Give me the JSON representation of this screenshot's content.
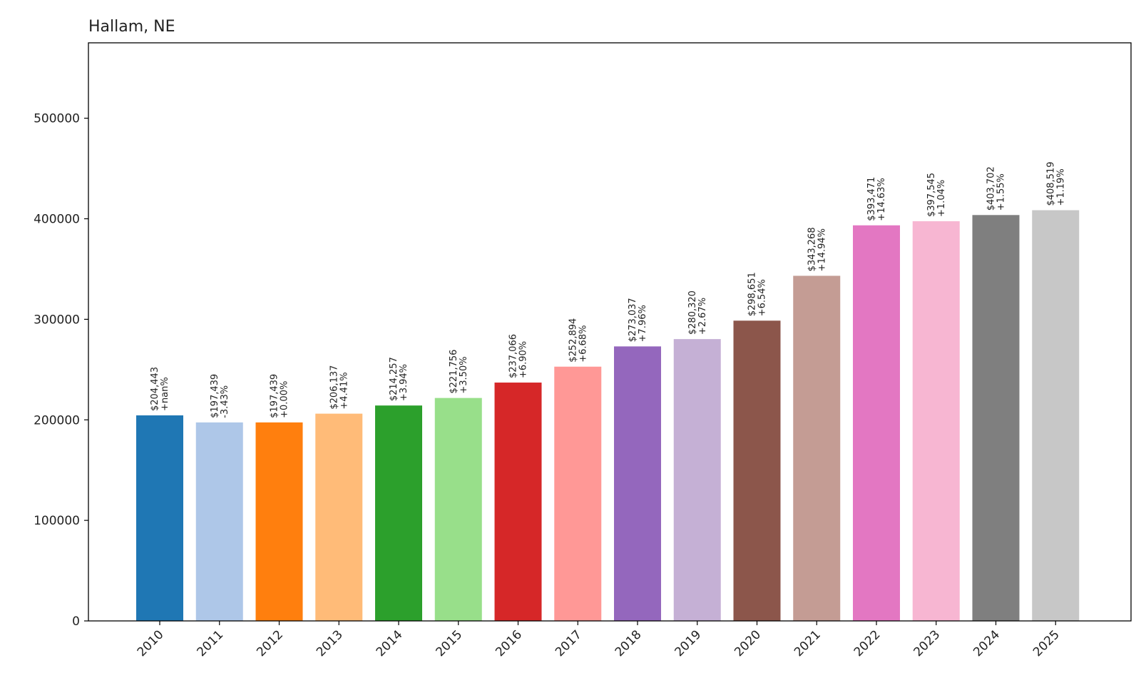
{
  "chart_data": {
    "type": "bar",
    "title": "Hallam, NE",
    "xlabel": "",
    "ylabel": "",
    "ylim": [
      0,
      575000
    ],
    "yticks": [
      "0",
      "100000",
      "200000",
      "300000",
      "400000",
      "500000"
    ],
    "ytick_values": [
      0,
      100000,
      200000,
      300000,
      400000,
      500000
    ],
    "grid": false,
    "categories": [
      "2010",
      "2011",
      "2012",
      "2013",
      "2014",
      "2015",
      "2016",
      "2017",
      "2018",
      "2019",
      "2020",
      "2021",
      "2022",
      "2023",
      "2024",
      "2025"
    ],
    "values": [
      204443,
      197439,
      197439,
      206137,
      214257,
      221756,
      237066,
      252894,
      273037,
      280320,
      298651,
      343268,
      393471,
      397545,
      403702,
      408519
    ],
    "value_labels": [
      "$204,443",
      "$197,439",
      "$197,439",
      "$206,137",
      "$214,257",
      "$221,756",
      "$237,066",
      "$252,894",
      "$273,037",
      "$280,320",
      "$298,651",
      "$343,268",
      "$393,471",
      "$397,545",
      "$403,702",
      "$408,519"
    ],
    "change_labels": [
      "+nan%",
      "-3.43%",
      "+0.00%",
      "+4.41%",
      "+3.94%",
      "+3.50%",
      "+6.90%",
      "+6.68%",
      "+7.96%",
      "+2.67%",
      "+6.54%",
      "+14.94%",
      "+14.63%",
      "+1.04%",
      "+1.55%",
      "+1.19%"
    ],
    "colors": [
      "#1f77b4",
      "#aec7e8",
      "#ff7f0e",
      "#ffbb78",
      "#2ca02c",
      "#98df8a",
      "#d62728",
      "#ff9896",
      "#9467bd",
      "#c5b0d5",
      "#8c564b",
      "#c49c94",
      "#e377c2",
      "#f7b6d2",
      "#7f7f7f",
      "#c7c7c7"
    ]
  }
}
